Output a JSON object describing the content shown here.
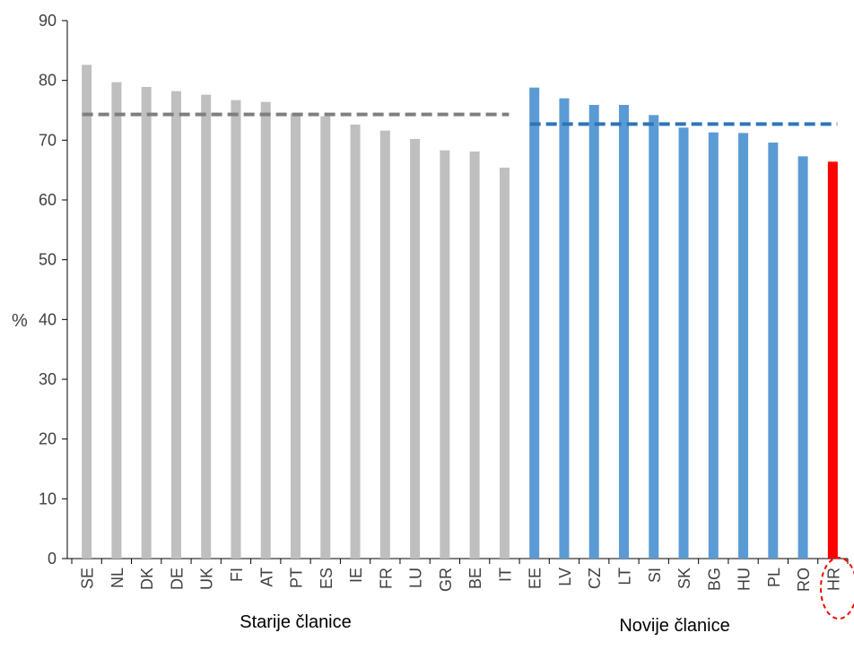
{
  "chart_data": {
    "type": "bar",
    "ylabel": "%",
    "ylim": [
      0,
      90
    ],
    "yticks": [
      0,
      10,
      20,
      30,
      40,
      50,
      60,
      70,
      80,
      90
    ],
    "grid": false,
    "categories": [
      "SE",
      "NL",
      "DK",
      "DE",
      "UK",
      "FI",
      "AT",
      "PT",
      "ES",
      "IE",
      "FR",
      "LU",
      "GR",
      "BE",
      "IT",
      "EE",
      "LV",
      "CZ",
      "LT",
      "SI",
      "SK",
      "BG",
      "HU",
      "PL",
      "RO",
      "HR"
    ],
    "values": [
      82.6,
      79.7,
      78.9,
      78.2,
      77.6,
      76.7,
      76.4,
      74.5,
      74.0,
      72.6,
      71.6,
      70.2,
      68.3,
      68.1,
      65.4,
      78.8,
      77.0,
      75.9,
      75.9,
      74.2,
      72.1,
      71.3,
      71.2,
      69.6,
      67.3,
      66.4
    ],
    "groups": [
      {
        "name": "Starije članice",
        "start": 0,
        "end": 14,
        "average": 74.3,
        "color": "#bfbfbf",
        "average_color": "#7f7f7f"
      },
      {
        "name": "Novije članice",
        "start": 15,
        "end": 25,
        "average": 72.7,
        "color": "#5b9bd5",
        "average_color": "#2e75b6"
      }
    ],
    "highlight": {
      "category": "HR",
      "color": "#ff0000"
    }
  }
}
